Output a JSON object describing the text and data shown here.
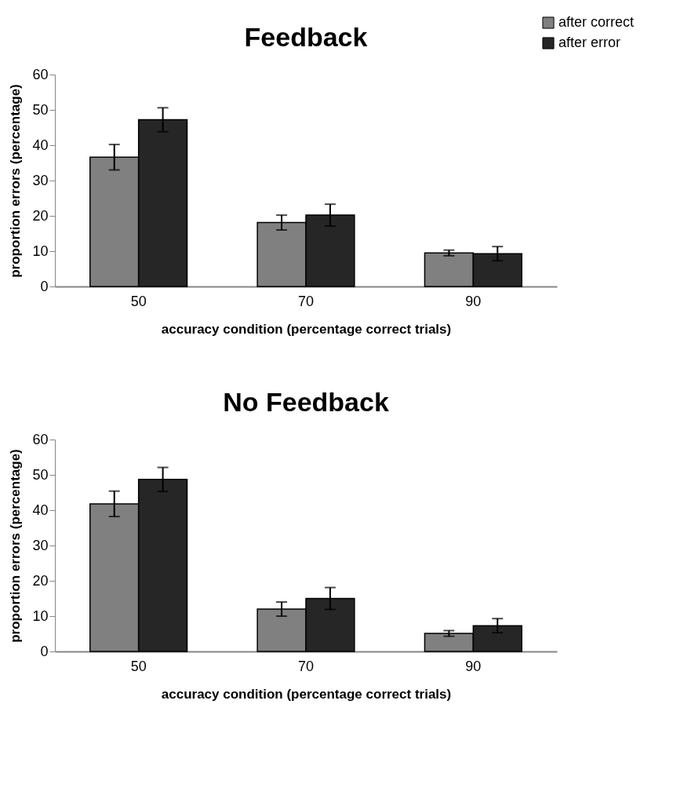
{
  "chart_data": [
    {
      "type": "bar",
      "title": "Feedback",
      "xlabel": "accuracy condition (percentage correct trials)",
      "ylabel": "proportion errors (percentage)",
      "categories": [
        "50",
        "70",
        "90"
      ],
      "ylim": [
        0,
        60
      ],
      "yticks": [
        0,
        10,
        20,
        30,
        40,
        50,
        60
      ],
      "legend": "top right",
      "series": [
        {
          "name": "after correct",
          "color": "#808080",
          "values": [
            36.6,
            18.1,
            9.5
          ],
          "errors": [
            3.6,
            2.1,
            0.8
          ]
        },
        {
          "name": "after error",
          "color": "#262626",
          "values": [
            47.2,
            20.2,
            9.3
          ],
          "errors": [
            3.4,
            3.1,
            2.0
          ]
        }
      ]
    },
    {
      "type": "bar",
      "title": "No Feedback",
      "xlabel": "accuracy condition (percentage correct trials)",
      "ylabel": "proportion errors (percentage)",
      "categories": [
        "50",
        "70",
        "90"
      ],
      "ylim": [
        0,
        60
      ],
      "yticks": [
        0,
        10,
        20,
        30,
        40,
        50,
        60
      ],
      "legend": "top right",
      "series": [
        {
          "name": "after correct",
          "color": "#808080",
          "values": [
            41.8,
            12.0,
            5.1
          ],
          "errors": [
            3.6,
            2.0,
            0.8
          ]
        },
        {
          "name": "after error",
          "color": "#262626",
          "values": [
            48.7,
            15.0,
            7.3
          ],
          "errors": [
            3.4,
            3.1,
            2.0
          ]
        }
      ]
    }
  ]
}
